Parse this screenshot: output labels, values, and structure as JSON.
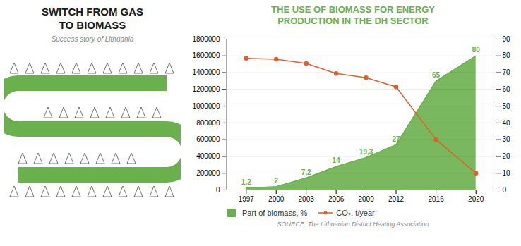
{
  "chart_data": {
    "type": "line",
    "title": "THE USE OF BIOMASS FOR ENERGY\nPRODUCTION IN THE DH SECTOR",
    "annotations": [
      "SWITCH FROM GAS",
      "TO BIOMASS",
      "Success story of Lithuania",
      "SOURCE: The Lithuanian District Heating Association"
    ],
    "x": [
      1997,
      2000,
      2003,
      2006,
      2009,
      2012,
      2016,
      2020
    ],
    "xlim": [
      1995,
      2022
    ],
    "xticks": [
      1997,
      2000,
      2003,
      2006,
      2009,
      2012,
      2016,
      2020
    ],
    "ylim": [
      0,
      1800000
    ],
    "yticks": [
      0,
      200000,
      400000,
      600000,
      800000,
      1000000,
      1200000,
      1400000,
      1600000,
      1800000
    ],
    "y2lim": [
      0,
      90
    ],
    "y2ticks": [
      0,
      10,
      20,
      30,
      40,
      50,
      60,
      70,
      80,
      90
    ],
    "grid": true,
    "legend": "lower left",
    "series": [
      {
        "name": "Part of biomass, %",
        "type": "area",
        "axis": "y2",
        "color": "#6ab04c",
        "values": [
          1.2,
          2,
          7.2,
          14,
          19.3,
          27,
          65,
          80
        ],
        "value_labels": [
          "1,2",
          "2",
          "7,2",
          "14",
          "19,3",
          "27",
          "65",
          "80"
        ],
        "data_labels": true
      },
      {
        "name": "CO₂, t/year",
        "type": "line",
        "color": "#e55d2b",
        "marker": "o",
        "values": [
          1570000,
          1560000,
          1510000,
          1390000,
          1340000,
          1230000,
          600000,
          200000
        ]
      }
    ]
  }
}
